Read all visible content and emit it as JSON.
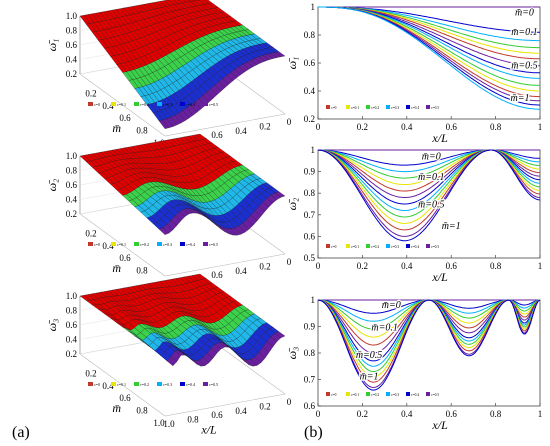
{
  "figure": {
    "panel_a_label": "(a)",
    "panel_b_label": "(b)"
  },
  "legend_colors": [
    "#c0392b",
    "#e8e600",
    "#33cc33",
    "#00b0ff",
    "#0000cc",
    "#6a1fa0"
  ],
  "chart_data": [
    {
      "id": "a1",
      "type": "surface3d",
      "zlabel": "ω̄₁",
      "xlabel": "x/L",
      "ylabel": "m̄",
      "zlim": [
        0.2,
        1.0
      ],
      "zticks": [
        "0.2",
        "0.4",
        "0.6",
        "0.8",
        "1.0"
      ],
      "x_ticks": [
        "1.0",
        "0.8",
        "0.6",
        "0.4",
        "0.2",
        "0"
      ],
      "m_ticks": [
        "0.2",
        "0.4",
        "0.6",
        "0.8",
        "1.0"
      ],
      "legend": [
        "c=0",
        "c=0.1",
        "c=0.2",
        "c=0.3",
        "c=0.4",
        "c=0.5"
      ],
      "shape": "single_dip",
      "min_value": 0.3
    },
    {
      "id": "a2",
      "type": "surface3d",
      "zlabel": "ω̄₂",
      "xlabel": "x/L",
      "ylabel": "m̄",
      "zlim": [
        0.2,
        1.0
      ],
      "zticks": [
        "0.2",
        "0.4",
        "0.6",
        "0.8",
        "1.0"
      ],
      "x_ticks": [
        "1.0",
        "0.8",
        "0.6",
        "0.4",
        "0.2",
        "0"
      ],
      "m_ticks": [
        "0.2",
        "0.4",
        "0.6",
        "0.8"
      ],
      "legend": [
        "c=0",
        "c=0.1",
        "c=0.2",
        "c=0.3",
        "c=0.4",
        "c=0.5"
      ],
      "shape": "two_dips",
      "min_value": 0.6
    },
    {
      "id": "a3",
      "type": "surface3d",
      "zlabel": "ω̄₃",
      "xlabel": "x/L",
      "ylabel": "m̄",
      "zlim": [
        0.2,
        1.0
      ],
      "zticks": [
        "0.2",
        "0.4",
        "0.6",
        "0.8",
        "1.0"
      ],
      "x_ticks": [
        "1.0",
        "0.8",
        "0.6",
        "0.4",
        "0.2",
        "0"
      ],
      "m_ticks": [
        "0.2",
        "0.4",
        "0.6",
        "0.8",
        "1.0"
      ],
      "legend": [
        "c=0",
        "c=0.1",
        "c=0.2",
        "c=0.3",
        "c=0.4",
        "c=0.5"
      ],
      "shape": "three_dips",
      "min_value": 0.66
    },
    {
      "id": "b1",
      "type": "line",
      "xlabel": "x/L",
      "ylabel": "ω̄₁",
      "xlim": [
        0,
        1
      ],
      "ylim": [
        0.2,
        1.0
      ],
      "xticks": [
        "0",
        "0.2",
        "0.4",
        "0.6",
        "0.8",
        "1"
      ],
      "yticks": [
        "0.2",
        "0.4",
        "0.6",
        "0.8",
        "1"
      ],
      "legend": [
        "c=0",
        "c=0.1",
        "c=0.2",
        "c=0.3",
        "c=0.4",
        "c=0.5"
      ],
      "m_values": [
        0,
        0.1,
        0.5,
        1
      ],
      "annotations": [
        {
          "text": "m̄=0",
          "x": 0.93,
          "y": 0.94
        },
        {
          "text": "m̄=0.1",
          "x": 0.93,
          "y": 0.8
        },
        {
          "text": "m̄=0.5",
          "x": 0.93,
          "y": 0.56
        },
        {
          "text": "m̄=1",
          "x": 0.91,
          "y": 0.33
        }
      ],
      "mode": 1,
      "end_values": [
        1.0,
        0.82,
        0.76,
        0.71,
        0.67,
        0.63,
        0.58,
        0.53,
        0.49,
        0.44,
        0.4,
        0.36,
        0.33,
        0.3,
        0.27
      ]
    },
    {
      "id": "b2",
      "type": "line",
      "xlabel": "x/L",
      "ylabel": "ω̄₂",
      "xlim": [
        0,
        1
      ],
      "ylim": [
        0.5,
        1.0
      ],
      "xticks": [
        "0",
        "0.2",
        "0.4",
        "0.6",
        "0.8",
        "1"
      ],
      "yticks": [
        "0.5",
        "0.6",
        "0.7",
        "0.8",
        "0.9",
        "1"
      ],
      "legend": [
        "c=0",
        "c=0.1",
        "c=0.2",
        "c=0.3",
        "c=0.4",
        "c=0.5"
      ],
      "m_values": [
        0,
        0.1,
        0.5,
        1
      ],
      "annotations": [
        {
          "text": "m̄=0",
          "x": 0.51,
          "y": 0.955
        },
        {
          "text": "m̄=0.1",
          "x": 0.51,
          "y": 0.862
        },
        {
          "text": "m̄=0.5",
          "x": 0.51,
          "y": 0.733
        },
        {
          "text": "m̄=1",
          "x": 0.6,
          "y": 0.635
        }
      ],
      "mode": 2,
      "dip_values": [
        1.0,
        0.93,
        0.9,
        0.87,
        0.84,
        0.81,
        0.78,
        0.75,
        0.72,
        0.69,
        0.66,
        0.63,
        0.6,
        0.58
      ]
    },
    {
      "id": "b3",
      "type": "line",
      "xlabel": "x/L",
      "ylabel": "ω̄₃",
      "xlim": [
        0,
        1
      ],
      "ylim": [
        0.6,
        1.0
      ],
      "xticks": [
        "0",
        "0.2",
        "0.4",
        "0.6",
        "0.8",
        "1"
      ],
      "yticks": [
        "0.6",
        "0.7",
        "0.8",
        "0.9",
        "1"
      ],
      "legend": [
        "c=0",
        "c=0.1",
        "c=0.2",
        "c=0.3",
        "c=0.4",
        "c=0.5"
      ],
      "m_values": [
        0,
        0.1,
        0.5,
        1
      ],
      "annotations": [
        {
          "text": "m̄=0",
          "x": 0.33,
          "y": 0.97
        },
        {
          "text": "m̄=0.1",
          "x": 0.3,
          "y": 0.885
        },
        {
          "text": "m̄=0.5",
          "x": 0.23,
          "y": 0.782
        },
        {
          "text": "m̄=1",
          "x": 0.23,
          "y": 0.7
        }
      ],
      "mode": 3,
      "dip_values": [
        1.0,
        0.95,
        0.92,
        0.89,
        0.86,
        0.83,
        0.8,
        0.77,
        0.75,
        0.73,
        0.71,
        0.69,
        0.67,
        0.66
      ]
    }
  ]
}
